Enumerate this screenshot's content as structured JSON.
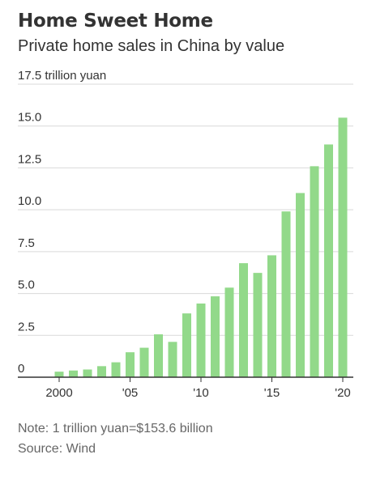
{
  "header": {
    "title": "Home Sweet Home",
    "subtitle": "Private home sales in China by value"
  },
  "footer": {
    "note": "Note: 1 trillion yuan=$153.6 billion",
    "source": "Source: Wind"
  },
  "chart_data": {
    "type": "bar",
    "title": "Home Sweet Home",
    "subtitle": "Private home sales in China by value",
    "ylabel": "trillion yuan",
    "ylim": [
      0,
      17.5
    ],
    "yticks": [
      0,
      2.5,
      5.0,
      7.5,
      10.0,
      12.5,
      15.0,
      17.5
    ],
    "ytick_labels": [
      "0",
      "2.5",
      "5.0",
      "7.5",
      "10.0",
      "12.5",
      "15.0",
      "17.5 trillion yuan"
    ],
    "xticks": [
      2000,
      2005,
      2010,
      2015,
      2020
    ],
    "xtick_labels": [
      "2000",
      "'05",
      "'10",
      "'15",
      "'20"
    ],
    "grid": true,
    "color": "#92d98a",
    "categories": [
      2000,
      2001,
      2002,
      2003,
      2004,
      2005,
      2006,
      2007,
      2008,
      2009,
      2010,
      2011,
      2012,
      2013,
      2014,
      2015,
      2016,
      2017,
      2018,
      2019,
      2020
    ],
    "values": [
      0.33,
      0.4,
      0.46,
      0.66,
      0.89,
      1.49,
      1.76,
      2.56,
      2.11,
      3.81,
      4.4,
      4.83,
      5.35,
      6.81,
      6.23,
      7.28,
      9.9,
      11.0,
      12.6,
      13.9,
      15.5
    ]
  }
}
